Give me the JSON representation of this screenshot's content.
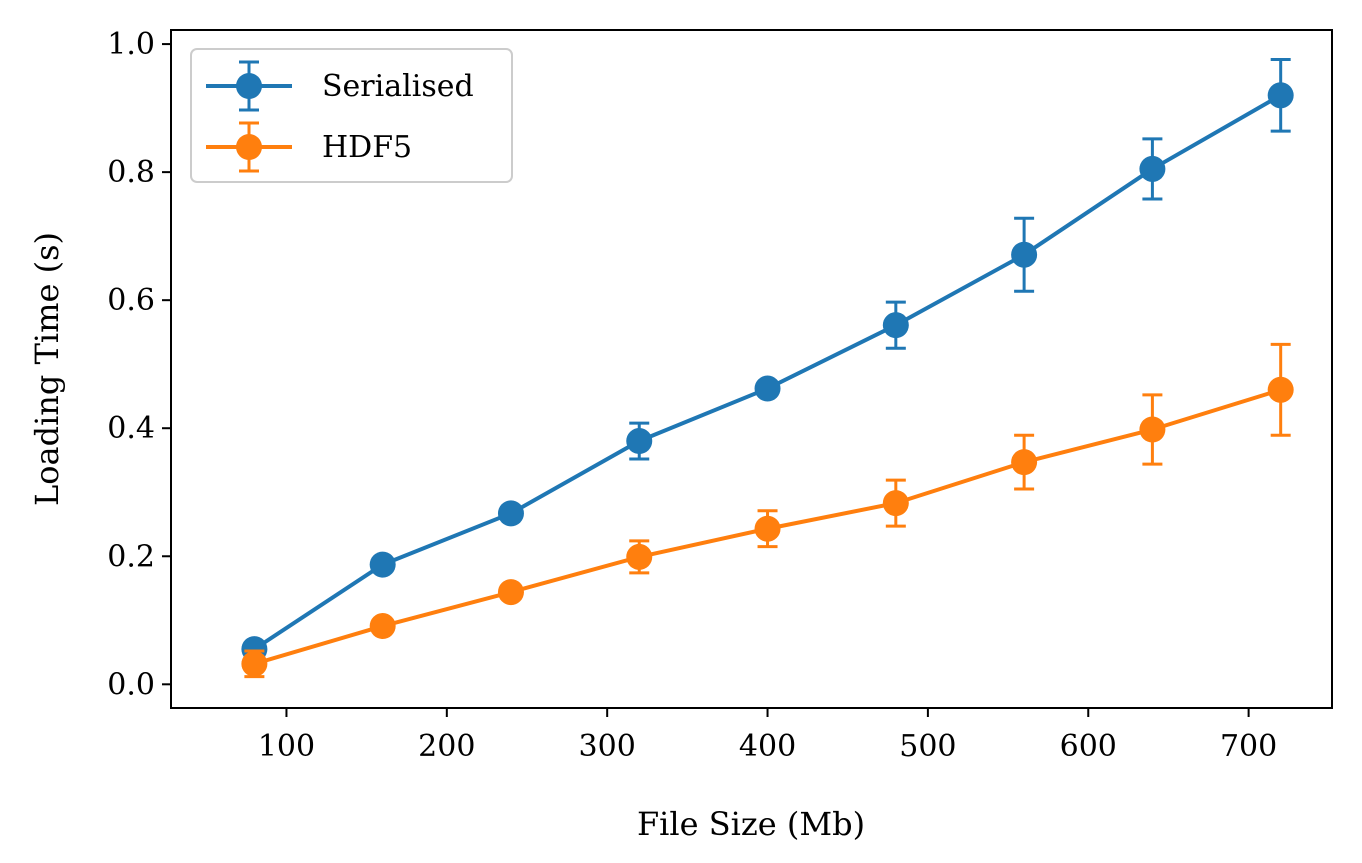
{
  "chart_data": {
    "type": "line",
    "title": "",
    "xlabel": "File Size (Mb)",
    "ylabel": "Loading Time (s)",
    "xlim": [
      28,
      752
    ],
    "ylim": [
      -0.037,
      1.022
    ],
    "xticks": [
      100,
      200,
      300,
      400,
      500,
      600,
      700
    ],
    "xtick_labels": [
      "100",
      "200",
      "300",
      "400",
      "500",
      "600",
      "700"
    ],
    "yticks": [
      0.0,
      0.2,
      0.4,
      0.6,
      0.8,
      1.0
    ],
    "ytick_labels": [
      "0.0",
      "0.2",
      "0.4",
      "0.6",
      "0.8",
      "1.0"
    ],
    "grid": false,
    "legend_position": "top-left",
    "x": [
      80,
      160,
      240,
      320,
      400,
      480,
      560,
      640,
      720
    ],
    "series": [
      {
        "name": "Serialised",
        "color": "#1f77b4",
        "values": [
          0.055,
          0.187,
          0.267,
          0.38,
          0.462,
          0.561,
          0.671,
          0.805,
          0.92
        ],
        "errors": [
          0.01,
          0.008,
          0.008,
          0.028,
          0.01,
          0.036,
          0.057,
          0.047,
          0.056
        ]
      },
      {
        "name": "HDF5",
        "color": "#ff7f0e",
        "values": [
          0.032,
          0.091,
          0.144,
          0.199,
          0.243,
          0.283,
          0.347,
          0.398,
          0.46
        ],
        "errors": [
          0.02,
          0.006,
          0.007,
          0.025,
          0.028,
          0.036,
          0.042,
          0.054,
          0.071
        ]
      }
    ]
  }
}
